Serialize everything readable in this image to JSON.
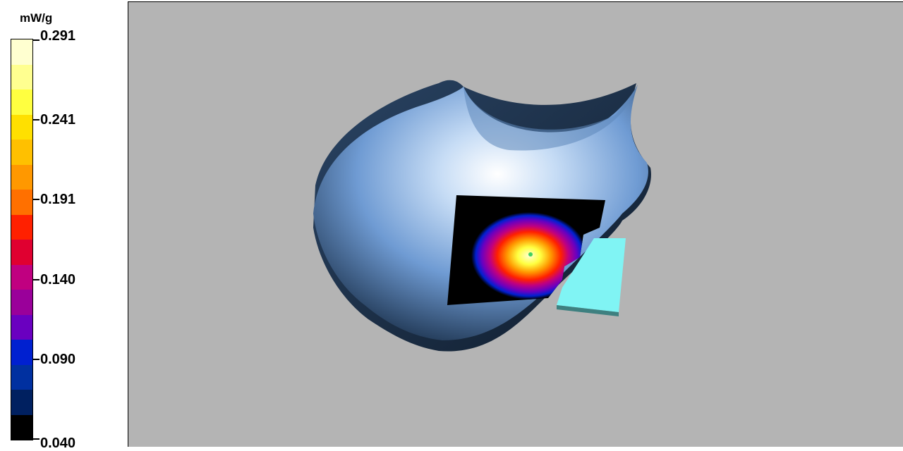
{
  "legend": {
    "unit": "mW/g",
    "ticks": [
      "0.291",
      "0.241",
      "0.191",
      "0.140",
      "0.090",
      "0.040"
    ],
    "colors": [
      "#ffffd0",
      "#ffff90",
      "#ffff40",
      "#ffe000",
      "#ffc000",
      "#ff9800",
      "#ff7000",
      "#ff2000",
      "#e00030",
      "#c00080",
      "#9a009a",
      "#6a00c0",
      "#0020d0",
      "#0030a0",
      "#002060",
      "#000000"
    ]
  },
  "viewport": {
    "background": "#b4b4b4",
    "phantom_color": "#6f9bd3",
    "scan_heatmap": "SAR area scan",
    "device_color": "#80f4f4"
  }
}
